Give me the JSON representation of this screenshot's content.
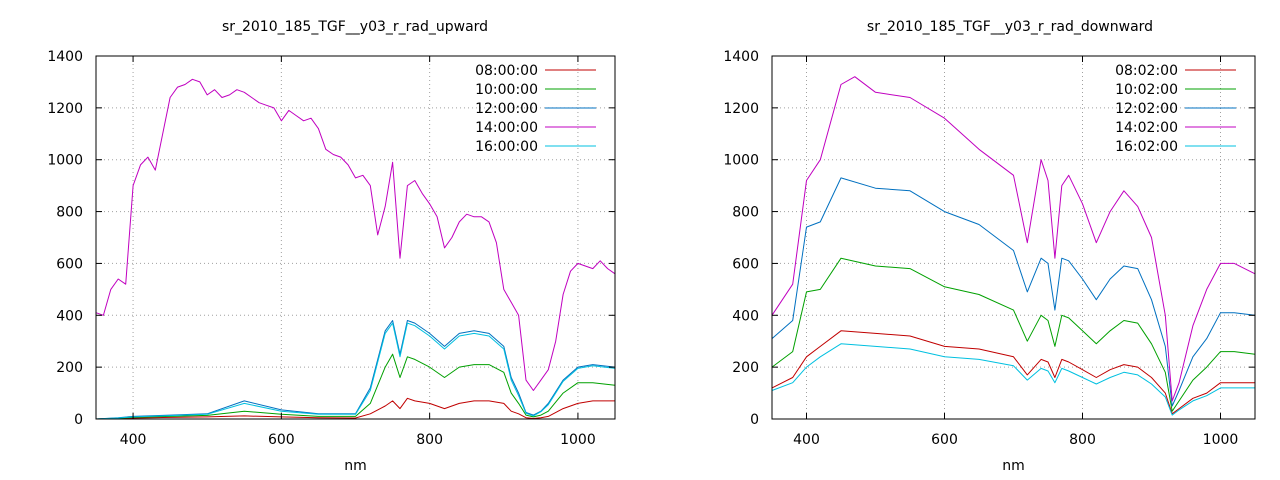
{
  "chart_data": [
    {
      "type": "line",
      "title": "sr_2010_185_TGF__y03_r_rad_upward",
      "xlabel": "nm",
      "ylabel": "",
      "xlim": [
        350,
        1050
      ],
      "ylim": [
        0,
        1400
      ],
      "xticks": [
        400,
        600,
        800,
        1000
      ],
      "yticks": [
        0,
        200,
        400,
        600,
        800,
        1000,
        1200,
        1400
      ],
      "grid": true,
      "legend_position": "top-right",
      "series": [
        {
          "name": "08:00:00",
          "color": "#c00000",
          "x": [
            350,
            380,
            400,
            450,
            500,
            550,
            600,
            650,
            700,
            720,
            740,
            750,
            760,
            770,
            780,
            800,
            820,
            840,
            860,
            880,
            900,
            910,
            920,
            930,
            940,
            950,
            960,
            980,
            1000,
            1020,
            1050
          ],
          "y": [
            0,
            2,
            4,
            6,
            8,
            12,
            8,
            5,
            4,
            20,
            50,
            70,
            40,
            80,
            70,
            60,
            40,
            60,
            70,
            70,
            60,
            30,
            20,
            5,
            2,
            5,
            10,
            40,
            60,
            70,
            70
          ]
        },
        {
          "name": "10:00:00",
          "color": "#00a000",
          "x": [
            350,
            380,
            400,
            450,
            500,
            550,
            600,
            650,
            700,
            720,
            740,
            750,
            760,
            770,
            780,
            800,
            820,
            840,
            860,
            880,
            900,
            910,
            920,
            930,
            940,
            950,
            960,
            980,
            1000,
            1020,
            1050
          ],
          "y": [
            0,
            3,
            6,
            10,
            14,
            30,
            18,
            10,
            10,
            60,
            200,
            250,
            160,
            240,
            230,
            200,
            160,
            200,
            210,
            210,
            180,
            100,
            60,
            15,
            8,
            15,
            30,
            100,
            140,
            140,
            130
          ]
        },
        {
          "name": "12:00:00",
          "color": "#0070c0",
          "x": [
            350,
            380,
            400,
            450,
            500,
            550,
            600,
            650,
            700,
            720,
            740,
            750,
            760,
            770,
            780,
            800,
            820,
            840,
            860,
            880,
            900,
            910,
            920,
            930,
            940,
            950,
            960,
            980,
            1000,
            1020,
            1050
          ],
          "y": [
            0,
            5,
            10,
            15,
            20,
            70,
            35,
            20,
            20,
            120,
            340,
            380,
            250,
            380,
            370,
            330,
            280,
            330,
            340,
            330,
            280,
            160,
            100,
            25,
            15,
            30,
            60,
            150,
            200,
            210,
            200
          ]
        },
        {
          "name": "14:00:00",
          "color": "#c000c0",
          "x": [
            350,
            360,
            370,
            380,
            390,
            400,
            410,
            420,
            430,
            440,
            450,
            460,
            470,
            480,
            490,
            500,
            510,
            520,
            530,
            540,
            550,
            560,
            570,
            580,
            590,
            600,
            610,
            620,
            630,
            640,
            650,
            660,
            670,
            680,
            690,
            700,
            710,
            720,
            730,
            740,
            750,
            760,
            770,
            780,
            790,
            800,
            810,
            820,
            830,
            840,
            850,
            860,
            870,
            880,
            890,
            900,
            910,
            920,
            930,
            940,
            950,
            960,
            970,
            980,
            990,
            1000,
            1010,
            1020,
            1030,
            1040,
            1050
          ],
          "y": [
            410,
            400,
            500,
            540,
            520,
            900,
            980,
            1010,
            960,
            1100,
            1240,
            1280,
            1290,
            1310,
            1300,
            1250,
            1270,
            1240,
            1250,
            1270,
            1260,
            1240,
            1220,
            1210,
            1200,
            1150,
            1190,
            1170,
            1150,
            1160,
            1120,
            1040,
            1020,
            1010,
            980,
            930,
            940,
            900,
            710,
            820,
            990,
            620,
            900,
            920,
            870,
            830,
            780,
            660,
            700,
            760,
            790,
            780,
            780,
            760,
            680,
            500,
            450,
            400,
            150,
            110,
            150,
            190,
            300,
            480,
            570,
            600,
            590,
            580,
            610,
            580,
            560
          ]
        },
        {
          "name": "16:00:00",
          "color": "#00c0e0",
          "x": [
            350,
            380,
            400,
            450,
            500,
            550,
            600,
            650,
            700,
            720,
            740,
            750,
            760,
            770,
            780,
            800,
            820,
            840,
            860,
            880,
            900,
            910,
            920,
            930,
            940,
            950,
            960,
            980,
            1000,
            1020,
            1050
          ],
          "y": [
            0,
            4,
            8,
            13,
            18,
            60,
            30,
            18,
            18,
            110,
            330,
            370,
            240,
            370,
            360,
            320,
            270,
            320,
            330,
            320,
            270,
            150,
            90,
            22,
            12,
            28,
            55,
            145,
            195,
            205,
            195
          ]
        }
      ]
    },
    {
      "type": "line",
      "title": "sr_2010_185_TGF__y03_r_rad_downward",
      "xlabel": "nm",
      "ylabel": "",
      "xlim": [
        350,
        1050
      ],
      "ylim": [
        0,
        1400
      ],
      "xticks": [
        400,
        600,
        800,
        1000
      ],
      "yticks": [
        0,
        200,
        400,
        600,
        800,
        1000,
        1200,
        1400
      ],
      "grid": true,
      "legend_position": "top-right",
      "series": [
        {
          "name": "08:02:00",
          "color": "#c00000",
          "x": [
            350,
            380,
            400,
            420,
            450,
            500,
            550,
            600,
            650,
            700,
            720,
            740,
            750,
            760,
            770,
            780,
            800,
            820,
            840,
            860,
            880,
            900,
            920,
            930,
            940,
            960,
            980,
            1000,
            1020,
            1050
          ],
          "y": [
            120,
            160,
            240,
            280,
            340,
            330,
            320,
            280,
            270,
            240,
            170,
            230,
            220,
            160,
            230,
            220,
            190,
            160,
            190,
            210,
            200,
            160,
            100,
            20,
            40,
            80,
            100,
            140,
            140,
            140
          ]
        },
        {
          "name": "10:02:00",
          "color": "#00a000",
          "x": [
            350,
            380,
            400,
            420,
            450,
            500,
            550,
            600,
            650,
            700,
            720,
            740,
            750,
            760,
            770,
            780,
            800,
            820,
            840,
            860,
            880,
            900,
            920,
            930,
            940,
            960,
            980,
            1000,
            1020,
            1050
          ],
          "y": [
            200,
            260,
            490,
            500,
            620,
            590,
            580,
            510,
            480,
            420,
            300,
            400,
            380,
            280,
            400,
            390,
            340,
            290,
            340,
            380,
            370,
            290,
            180,
            30,
            70,
            150,
            200,
            260,
            260,
            250
          ]
        },
        {
          "name": "12:02:00",
          "color": "#0070c0",
          "x": [
            350,
            380,
            400,
            420,
            450,
            500,
            550,
            600,
            650,
            700,
            720,
            740,
            750,
            760,
            770,
            780,
            800,
            820,
            840,
            860,
            880,
            900,
            920,
            930,
            940,
            960,
            980,
            1000,
            1020,
            1050
          ],
          "y": [
            310,
            380,
            740,
            760,
            930,
            890,
            880,
            800,
            750,
            650,
            490,
            620,
            600,
            420,
            620,
            610,
            540,
            460,
            540,
            590,
            580,
            460,
            280,
            50,
            110,
            240,
            310,
            410,
            410,
            400
          ]
        },
        {
          "name": "14:02:00",
          "color": "#c000c0",
          "x": [
            350,
            380,
            400,
            420,
            450,
            470,
            500,
            550,
            600,
            650,
            700,
            720,
            740,
            750,
            760,
            770,
            780,
            800,
            820,
            840,
            860,
            880,
            900,
            920,
            930,
            940,
            960,
            980,
            1000,
            1020,
            1050
          ],
          "y": [
            400,
            520,
            920,
            1000,
            1290,
            1320,
            1260,
            1240,
            1160,
            1040,
            940,
            680,
            1000,
            920,
            620,
            900,
            940,
            830,
            680,
            800,
            880,
            820,
            700,
            400,
            70,
            140,
            360,
            500,
            600,
            600,
            560
          ]
        },
        {
          "name": "16:02:00",
          "color": "#00c0e0",
          "x": [
            350,
            380,
            400,
            420,
            450,
            500,
            550,
            600,
            650,
            700,
            720,
            740,
            750,
            760,
            770,
            780,
            800,
            820,
            840,
            860,
            880,
            900,
            920,
            930,
            940,
            960,
            980,
            1000,
            1020,
            1050
          ],
          "y": [
            110,
            140,
            200,
            240,
            290,
            280,
            270,
            240,
            230,
            205,
            150,
            195,
            185,
            140,
            195,
            185,
            160,
            135,
            160,
            180,
            170,
            135,
            85,
            15,
            35,
            70,
            90,
            120,
            120,
            120
          ]
        }
      ]
    }
  ]
}
